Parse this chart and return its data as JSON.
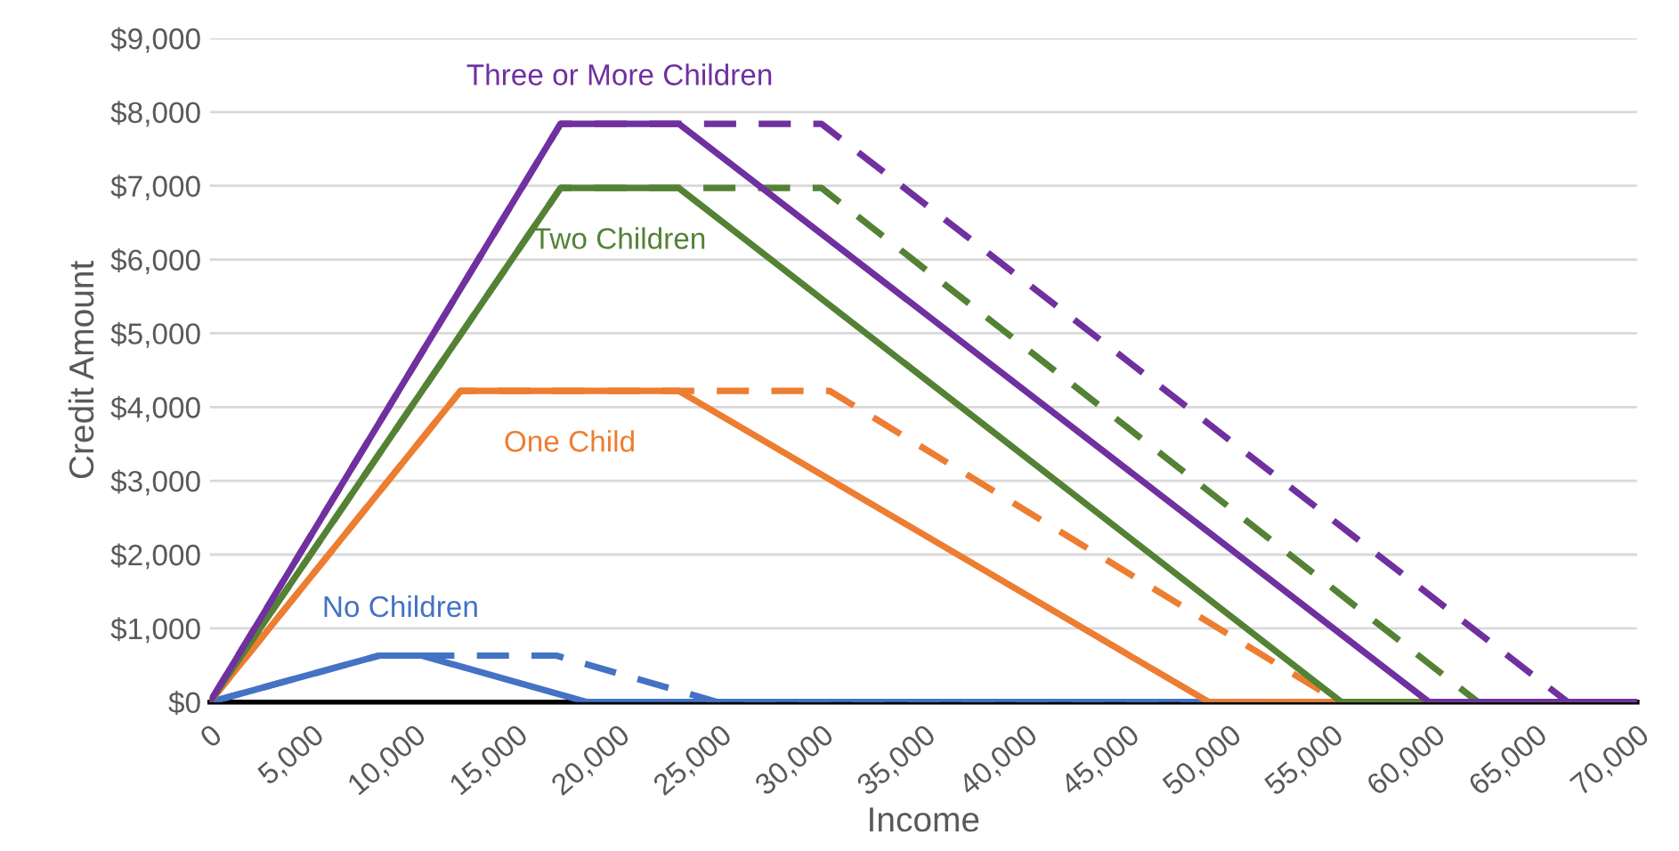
{
  "chart_data": {
    "type": "line",
    "xlabel": "Income",
    "ylabel": "Credit Amount",
    "xlim": [
      0,
      70000
    ],
    "xticks": [
      0,
      {
        "value": 5000,
        "label": "5,000"
      },
      {
        "value": 10000,
        "label": "10,000"
      },
      {
        "value": 15000,
        "label": "15,000"
      },
      {
        "value": 20000,
        "label": "20,000"
      },
      {
        "value": 25000,
        "label": "25,000"
      },
      {
        "value": 30000,
        "label": "30,000"
      },
      {
        "value": 35000,
        "label": "35,000"
      },
      {
        "value": 40000,
        "label": "40,000"
      },
      {
        "value": 45000,
        "label": "45,000"
      },
      {
        "value": 50000,
        "label": "50,000"
      },
      {
        "value": 55000,
        "label": "55,000"
      },
      {
        "value": 60000,
        "label": "60,000"
      },
      {
        "value": 65000,
        "label": "65,000"
      },
      {
        "value": 70000,
        "label": "70,000"
      }
    ],
    "ylim": [
      0,
      9000
    ],
    "yticks": [
      {
        "value": 0,
        "label": "$0"
      },
      {
        "value": 1000,
        "label": "$1,000"
      },
      {
        "value": 2000,
        "label": "$2,000"
      },
      {
        "value": 3000,
        "label": "$3,000"
      },
      {
        "value": 4000,
        "label": "$4,000"
      },
      {
        "value": 5000,
        "label": "$5,000"
      },
      {
        "value": 6000,
        "label": "$6,000"
      },
      {
        "value": 7000,
        "label": "$7,000"
      },
      {
        "value": 8000,
        "label": "$8,000"
      },
      {
        "value": 9000,
        "label": "$9,000"
      }
    ],
    "grid": "y",
    "legend": false,
    "marker": "none",
    "series": [
      {
        "color": "#4472c4",
        "line_style": "dashed",
        "x": [
          0,
          8300,
          17000,
          24900,
          70000
        ],
        "values": [
          0,
          630,
          630,
          0,
          0
        ]
      },
      {
        "color": "#ed7d31",
        "line_style": "dashed",
        "x": [
          0,
          12300,
          30400,
          55400,
          70000
        ],
        "values": [
          0,
          4220,
          4220,
          0,
          0
        ]
      },
      {
        "color": "#548235",
        "line_style": "dashed",
        "x": [
          0,
          17200,
          30000,
          62200,
          70000
        ],
        "values": [
          0,
          6970,
          6970,
          0,
          0
        ]
      },
      {
        "color": "#7030a0",
        "line_style": "dashed",
        "x": [
          0,
          17200,
          30000,
          66600,
          70000
        ],
        "values": [
          0,
          7840,
          7840,
          0,
          0
        ]
      },
      {
        "name": "No Children",
        "color": "#4472c4",
        "line_style": "solid",
        "x": [
          0,
          8300,
          10400,
          18500,
          70000
        ],
        "values": [
          0,
          630,
          630,
          0,
          0
        ]
      },
      {
        "name": "One Child",
        "color": "#ed7d31",
        "line_style": "solid",
        "x": [
          0,
          12300,
          23000,
          49000,
          70000
        ],
        "values": [
          0,
          4220,
          4220,
          0,
          0
        ]
      },
      {
        "name": "Two Children",
        "color": "#548235",
        "line_style": "solid",
        "x": [
          0,
          17200,
          23000,
          55500,
          70000
        ],
        "values": [
          0,
          6970,
          6970,
          0,
          0
        ]
      },
      {
        "name": "Three or More Children",
        "color": "#7030a0",
        "line_style": "solid",
        "x": [
          0,
          17200,
          23000,
          59800,
          70000
        ],
        "values": [
          0,
          7840,
          7840,
          0,
          0
        ]
      }
    ]
  }
}
